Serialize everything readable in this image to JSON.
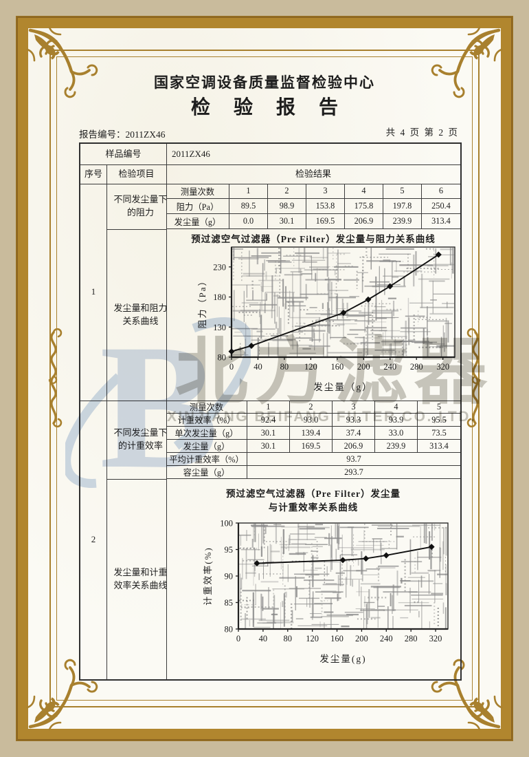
{
  "header": {
    "center_name": "国家空调设备质量监督检验中心",
    "report_title": "检验报告",
    "report_no": "报告编号：2011ZX46",
    "page_info": "共 4 页 第 2 页"
  },
  "table": {
    "sample_label": "样品编号",
    "sample_value": "2011ZX46",
    "seq_header": "序号",
    "item_header": "检验项目",
    "result_header": "检验结果",
    "block1": {
      "seq": "1",
      "item_top": "不同发尘量下的阻力",
      "item_bottom": "发尘量和阻力关系曲线"
    },
    "block2": {
      "seq": "2",
      "item_top": "不同发尘量下的计重效率",
      "item_bottom": "发尘量和计重效率关系曲线"
    }
  },
  "resistance_table": {
    "rows": [
      {
        "label": "测量次数",
        "values": [
          "1",
          "2",
          "3",
          "4",
          "5",
          "6"
        ]
      },
      {
        "label": "阻力（Pa）",
        "values": [
          "89.5",
          "98.9",
          "153.8",
          "175.8",
          "197.8",
          "250.4"
        ]
      },
      {
        "label": "发尘量（g）",
        "values": [
          "0.0",
          "30.1",
          "169.5",
          "206.9",
          "239.9",
          "313.4"
        ]
      }
    ]
  },
  "efficiency_table": {
    "rows": [
      {
        "label": "测量次数",
        "values": [
          "1",
          "2",
          "3",
          "4",
          "5"
        ]
      },
      {
        "label": "计重效率（%）",
        "values": [
          "92.4",
          "93.0",
          "93.3",
          "93.9",
          "95.5"
        ]
      },
      {
        "label": "单次发尘量（g）",
        "values": [
          "30.1",
          "139.4",
          "37.4",
          "33.0",
          "73.5"
        ]
      },
      {
        "label": "发尘量（g）",
        "values": [
          "30.1",
          "169.5",
          "206.9",
          "239.9",
          "313.4"
        ]
      }
    ],
    "merged_rows": [
      {
        "label": "平均计重效率（%）",
        "value": "93.7"
      },
      {
        "label": "容尘量（g）",
        "value": "293.7"
      }
    ]
  },
  "chart_data": [
    {
      "type": "line",
      "title": "预过滤空气过滤器（Pre Filter）发尘量与阻力关系曲线",
      "xlabel": "发尘量（g）",
      "ylabel": "阻力（Pa）",
      "x": [
        0,
        30.1,
        169.5,
        206.9,
        239.9,
        313.4
      ],
      "y": [
        89.5,
        98.9,
        153.8,
        175.8,
        197.8,
        250.4
      ],
      "xlim": [
        0,
        338
      ],
      "ylim": [
        80,
        263
      ],
      "xticks": [
        0,
        40,
        80,
        120,
        160,
        200,
        240,
        280,
        320
      ],
      "yticks": [
        80,
        130,
        180,
        230
      ],
      "grid": "dense-hatch",
      "legend": "none",
      "marker": "diamond"
    },
    {
      "type": "line",
      "title": "预过滤空气过滤器（Pre Filter）发尘量",
      "title2": "与计重效率关系曲线",
      "xlabel": "发尘量(g)",
      "ylabel": "计重效率(%)",
      "x": [
        30.1,
        169.5,
        206.9,
        239.9,
        313.4
      ],
      "y": [
        92.4,
        93.0,
        93.3,
        93.9,
        95.5
      ],
      "xlim": [
        0,
        340
      ],
      "ylim": [
        80,
        100
      ],
      "xticks": [
        0,
        40,
        80,
        120,
        160,
        200,
        240,
        280,
        320
      ],
      "yticks": [
        80,
        85,
        90,
        95,
        100
      ],
      "grid": "dense-hatch",
      "legend": "none",
      "marker": "diamond"
    }
  ],
  "watermark": {
    "logo_letter": "B",
    "cjk_text": "北方滤器",
    "en_text": "XINJIANG BEIFANG FILTER CO.,LTD."
  },
  "colors": {
    "gold_band": "#b1862e",
    "frame_gold": "#a8802e",
    "outer_tan": "#c9bb9c",
    "paper": "#fbfaf4",
    "table_line": "#333333",
    "watermark_blue": "#ccd9ea",
    "watermark_gray": "#c9c8c3"
  }
}
